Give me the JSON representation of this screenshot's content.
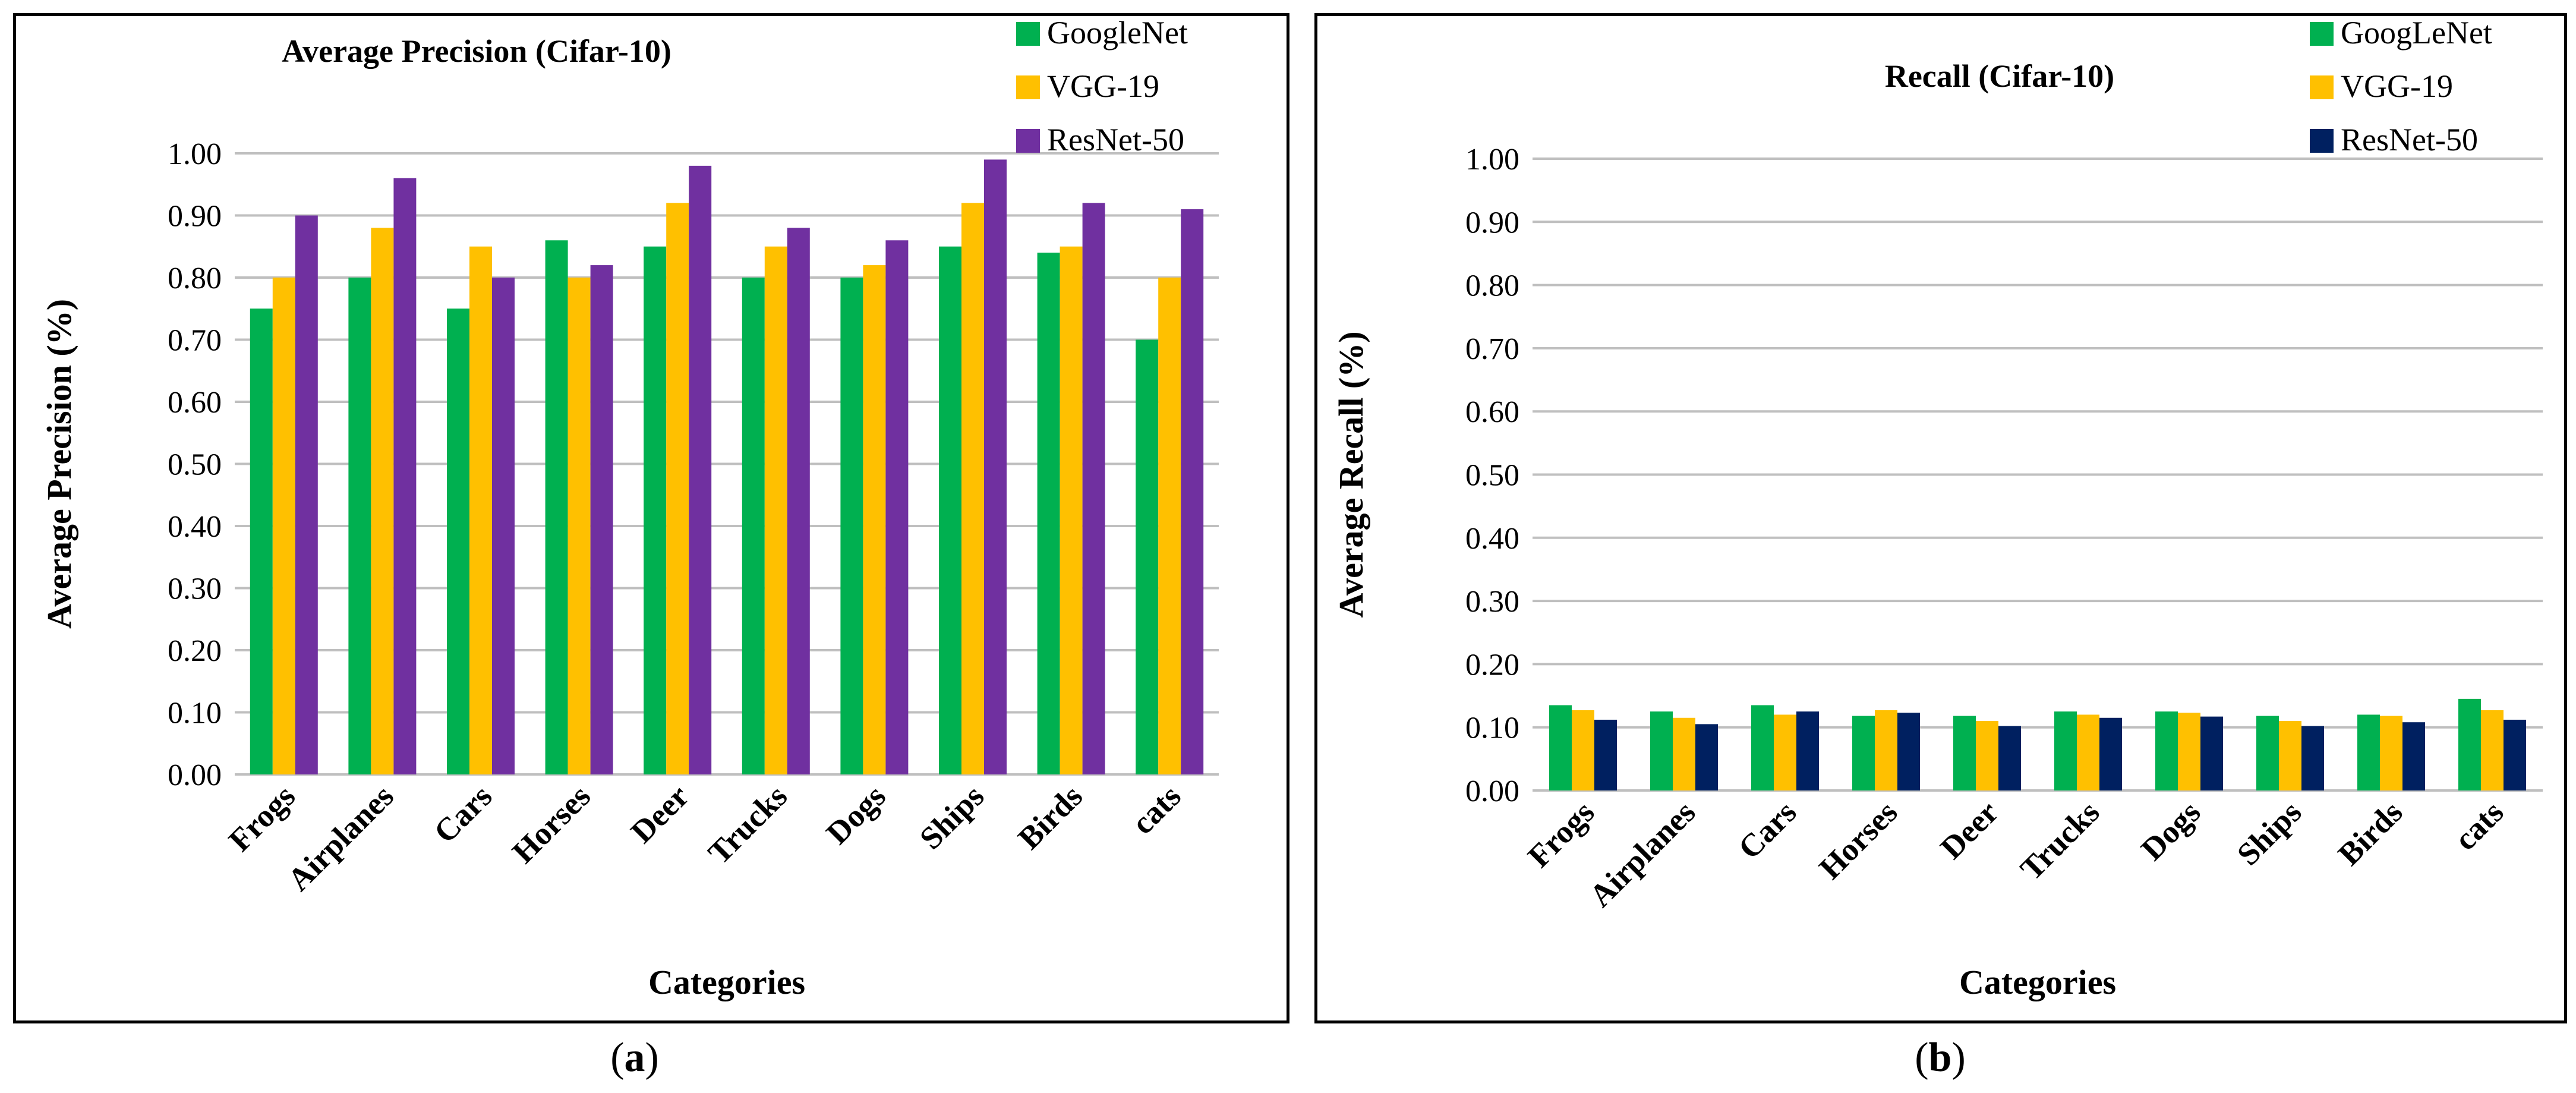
{
  "figure": {
    "label_a_prefix": "(",
    "label_a_letter": "a",
    "label_a_suffix": ")",
    "label_b_prefix": "(",
    "label_b_letter": "b",
    "label_b_suffix": ")"
  },
  "chart_data": [
    {
      "type": "bar",
      "title": "Average Precision (Cifar-10)",
      "xlabel": "Categories",
      "ylabel": "Average Precision (%)",
      "ylim": [
        0,
        1
      ],
      "yticks": [
        "0.00",
        "0.10",
        "0.20",
        "0.30",
        "0.40",
        "0.50",
        "0.60",
        "0.70",
        "0.80",
        "0.90",
        "1.00"
      ],
      "grid": true,
      "legend_position": "top-right",
      "categories": [
        "Frogs",
        "Airplanes",
        "Cars",
        "Horses",
        "Deer",
        "Trucks",
        "Dogs",
        "Ships",
        "Birds",
        "cats"
      ],
      "series": [
        {
          "name": "GoogleNet",
          "color": "#00b050",
          "values": [
            0.75,
            0.8,
            0.75,
            0.86,
            0.85,
            0.8,
            0.8,
            0.85,
            0.84,
            0.7
          ]
        },
        {
          "name": "VGG-19",
          "color": "#ffc000",
          "values": [
            0.8,
            0.88,
            0.85,
            0.8,
            0.92,
            0.85,
            0.82,
            0.92,
            0.85,
            0.8
          ]
        },
        {
          "name": "ResNet-50",
          "color": "#7030a0",
          "values": [
            0.9,
            0.96,
            0.8,
            0.82,
            0.98,
            0.88,
            0.86,
            0.99,
            0.92,
            0.91
          ]
        }
      ]
    },
    {
      "type": "bar",
      "title": "Recall (Cifar-10)",
      "xlabel": "Categories",
      "ylabel": "Average Recall (%)",
      "ylim": [
        0,
        1
      ],
      "yticks": [
        "0.00",
        "0.10",
        "0.20",
        "0.30",
        "0.40",
        "0.50",
        "0.60",
        "0.70",
        "0.80",
        "0.90",
        "1.00"
      ],
      "grid": true,
      "legend_position": "top-right",
      "categories": [
        "Frogs",
        "Airplanes",
        "Cars",
        "Horses",
        "Deer",
        "Trucks",
        "Dogs",
        "Ships",
        "Birds",
        "cats"
      ],
      "series": [
        {
          "name": "GoogLeNet",
          "color": "#00b050",
          "values": [
            0.135,
            0.125,
            0.135,
            0.118,
            0.118,
            0.125,
            0.125,
            0.118,
            0.12,
            0.145
          ]
        },
        {
          "name": "VGG-19",
          "color": "#ffc000",
          "values": [
            0.127,
            0.115,
            0.12,
            0.127,
            0.11,
            0.12,
            0.123,
            0.11,
            0.118,
            0.127
          ]
        },
        {
          "name": "ResNet-50",
          "color": "#002060",
          "values": [
            0.112,
            0.105,
            0.125,
            0.123,
            0.102,
            0.115,
            0.117,
            0.102,
            0.108,
            0.112
          ]
        }
      ]
    }
  ]
}
